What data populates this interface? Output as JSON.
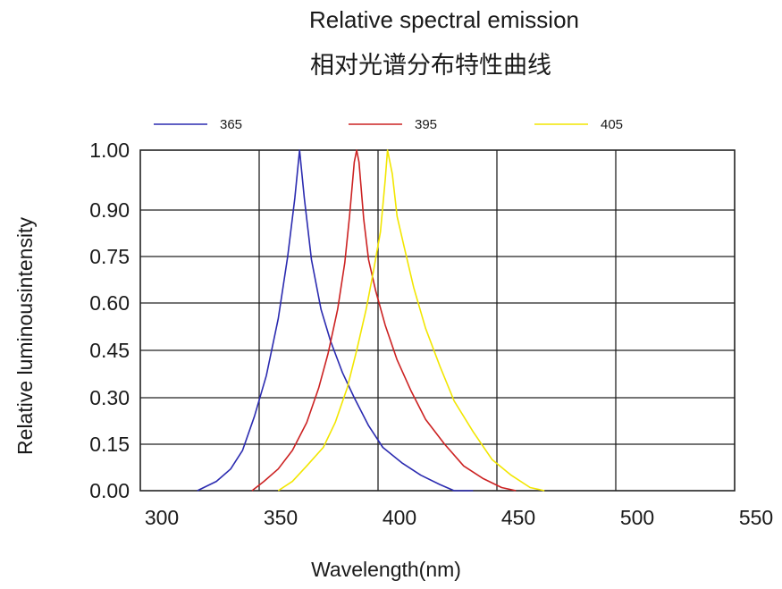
{
  "chart_data": {
    "type": "line",
    "title": "Relative spectral emission",
    "subtitle": "相对光谱分布特性曲线",
    "xlabel": "Wavelength(nm)",
    "ylabel": "Relative luminousintensity",
    "xlim": [
      300,
      550
    ],
    "ylim": [
      0,
      1
    ],
    "x_ticks": [
      "300",
      "350",
      "400",
      "450",
      "500",
      "550"
    ],
    "y_ticks": [
      "1.00",
      "0.90",
      "0.75",
      "0.60",
      "0.45",
      "0.30",
      "0.15",
      "0.00"
    ],
    "grid": true,
    "legend_position": "top",
    "series": [
      {
        "name": "365",
        "color": "#2b2bb0",
        "points": [
          [
            324,
            0.0
          ],
          [
            332,
            0.03
          ],
          [
            338,
            0.07
          ],
          [
            343,
            0.13
          ],
          [
            348,
            0.24
          ],
          [
            353,
            0.37
          ],
          [
            358,
            0.55
          ],
          [
            362,
            0.75
          ],
          [
            365,
            0.92
          ],
          [
            367,
            1.0
          ],
          [
            369,
            0.92
          ],
          [
            372,
            0.74
          ],
          [
            376,
            0.58
          ],
          [
            380,
            0.48
          ],
          [
            385,
            0.38
          ],
          [
            390,
            0.3
          ],
          [
            396,
            0.21
          ],
          [
            402,
            0.14
          ],
          [
            410,
            0.09
          ],
          [
            418,
            0.05
          ],
          [
            426,
            0.02
          ],
          [
            432,
            0.0
          ],
          [
            440,
            0.0
          ]
        ]
      },
      {
        "name": "395",
        "color": "#cc2222",
        "points": [
          [
            347,
            0.0
          ],
          [
            352,
            0.03
          ],
          [
            358,
            0.07
          ],
          [
            364,
            0.13
          ],
          [
            370,
            0.22
          ],
          [
            375,
            0.33
          ],
          [
            379,
            0.44
          ],
          [
            383,
            0.58
          ],
          [
            386,
            0.73
          ],
          [
            388,
            0.88
          ],
          [
            390,
            0.98
          ],
          [
            391,
            1.0
          ],
          [
            392,
            0.98
          ],
          [
            394,
            0.87
          ],
          [
            396,
            0.74
          ],
          [
            399,
            0.64
          ],
          [
            403,
            0.53
          ],
          [
            408,
            0.42
          ],
          [
            414,
            0.32
          ],
          [
            420,
            0.23
          ],
          [
            428,
            0.15
          ],
          [
            436,
            0.08
          ],
          [
            444,
            0.04
          ],
          [
            452,
            0.01
          ],
          [
            458,
            0.0
          ]
        ]
      },
      {
        "name": "405",
        "color": "#f2e600",
        "points": [
          [
            358,
            0.0
          ],
          [
            364,
            0.03
          ],
          [
            370,
            0.08
          ],
          [
            377,
            0.14
          ],
          [
            382,
            0.22
          ],
          [
            387,
            0.33
          ],
          [
            391,
            0.45
          ],
          [
            395,
            0.58
          ],
          [
            398,
            0.7
          ],
          [
            401,
            0.83
          ],
          [
            403,
            0.95
          ],
          [
            404,
            1.0
          ],
          [
            406,
            0.96
          ],
          [
            408,
            0.88
          ],
          [
            411,
            0.78
          ],
          [
            415,
            0.65
          ],
          [
            420,
            0.52
          ],
          [
            426,
            0.4
          ],
          [
            432,
            0.29
          ],
          [
            440,
            0.19
          ],
          [
            448,
            0.1
          ],
          [
            456,
            0.05
          ],
          [
            464,
            0.01
          ],
          [
            470,
            0.0
          ]
        ]
      }
    ]
  }
}
